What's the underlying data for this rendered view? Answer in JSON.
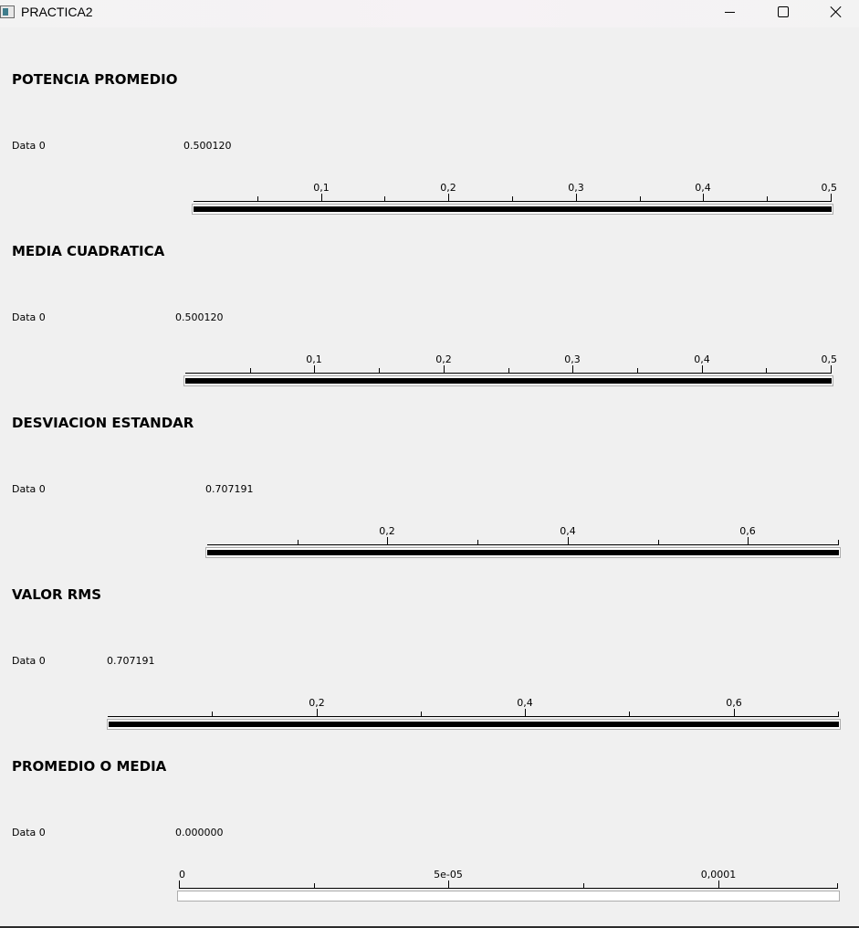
{
  "window": {
    "title": "PRACTICA2"
  },
  "sections": [
    {
      "title": "POTENCIA PROMEDIO",
      "data_label": "Data 0",
      "value_text": "0.500120",
      "value": 0.50012,
      "scale": {
        "min": 0,
        "max": 0.5,
        "major_ticks": [
          0.1,
          0.2,
          0.3,
          0.4,
          0.5
        ],
        "major_labels": [
          "0,1",
          "0,2",
          "0,3",
          "0,4",
          "0,5"
        ],
        "minor_ticks": [
          0.05,
          0.15,
          0.25,
          0.35,
          0.45
        ]
      }
    },
    {
      "title": "MEDIA CUADRATICA",
      "data_label": "Data 0",
      "value_text": "0.500120",
      "value": 0.50012,
      "scale": {
        "min": 0,
        "max": 0.5,
        "major_ticks": [
          0.1,
          0.2,
          0.3,
          0.4,
          0.5
        ],
        "major_labels": [
          "0,1",
          "0,2",
          "0,3",
          "0,4",
          "0,5"
        ],
        "minor_ticks": [
          0.05,
          0.15,
          0.25,
          0.35,
          0.45
        ]
      }
    },
    {
      "title": "DESVIACION ESTANDAR",
      "data_label": "Data 0",
      "value_text": "0.707191",
      "value": 0.707191,
      "scale": {
        "min": 0,
        "max": 0.7,
        "major_ticks": [
          0.2,
          0.4,
          0.6
        ],
        "major_labels": [
          "0,2",
          "0,4",
          "0,6"
        ],
        "minor_ticks": [
          0.1,
          0.3,
          0.5,
          0.7
        ]
      }
    },
    {
      "title": "VALOR RMS",
      "data_label": "Data 0",
      "value_text": "0.707191",
      "value": 0.707191,
      "scale": {
        "min": 0,
        "max": 0.7,
        "major_ticks": [
          0.2,
          0.4,
          0.6
        ],
        "major_labels": [
          "0,2",
          "0,4",
          "0,6"
        ],
        "minor_ticks": [
          0.1,
          0.3,
          0.5,
          0.7
        ]
      }
    },
    {
      "title": "PROMEDIO O MEDIA",
      "data_label": "Data 0",
      "value_text": "0.000000",
      "value": 0,
      "scale": {
        "min": 0,
        "max": 0.000122,
        "major_ticks": [
          0,
          5e-05,
          0.0001
        ],
        "major_labels": [
          "0",
          "5e-05",
          "0,0001"
        ],
        "minor_ticks": [
          2.5e-05,
          7.5e-05,
          0.000122
        ]
      }
    }
  ]
}
